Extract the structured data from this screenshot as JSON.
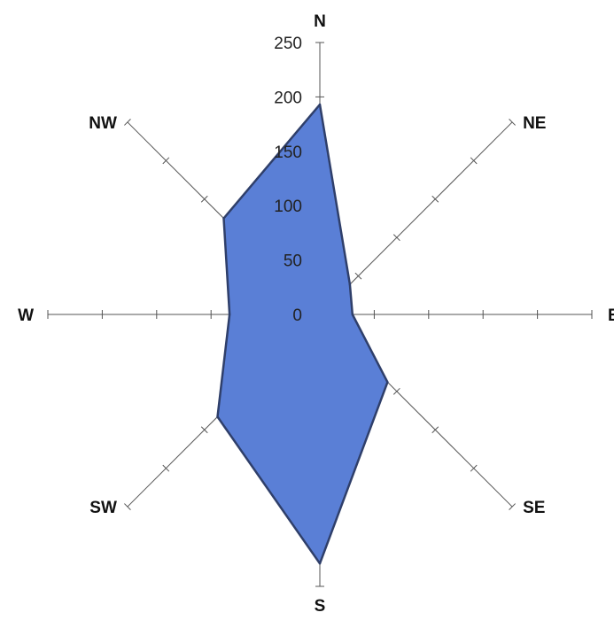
{
  "chart_data": {
    "type": "radar",
    "title": "",
    "directions": [
      "N",
      "NE",
      "E",
      "SE",
      "S",
      "SW",
      "W",
      "NW"
    ],
    "series": [
      {
        "values": [
          193,
          39,
          30,
          88,
          229,
          133,
          83,
          125
        ]
      }
    ],
    "radial_ticks": [
      0,
      50,
      100,
      150,
      200,
      250
    ],
    "rlim": [
      0,
      250
    ],
    "fill_color": "#5a7fd6",
    "stroke_color": "#2f3f6a",
    "axis_color": "#555555",
    "background": "#ffffff",
    "legend": "none"
  }
}
